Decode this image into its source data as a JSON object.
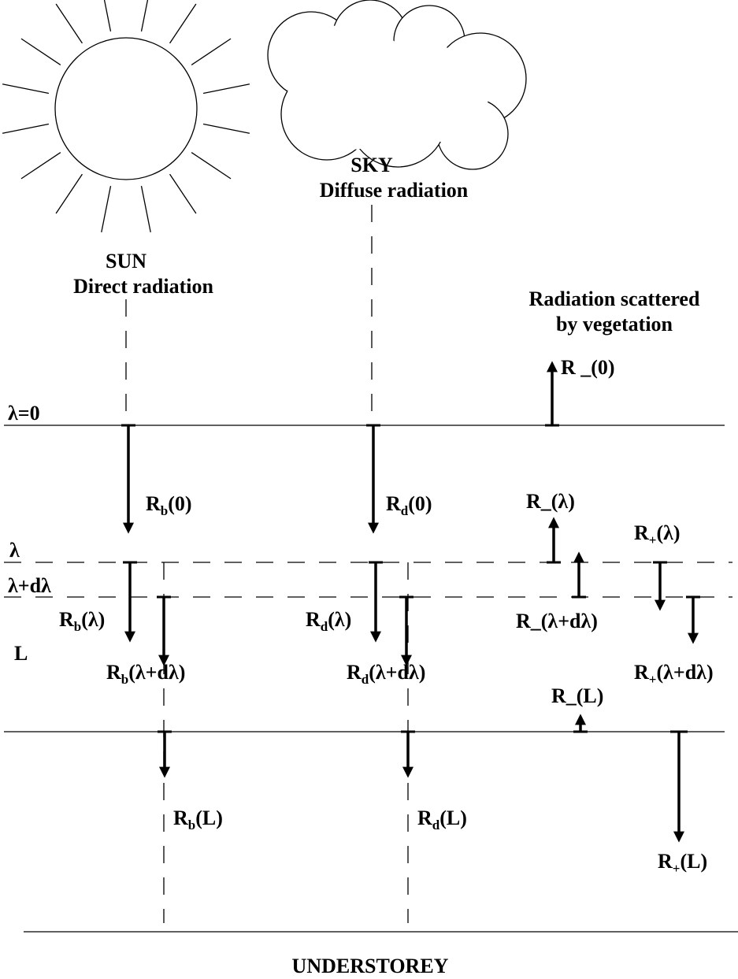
{
  "sun": {
    "title": "SUN",
    "subtitle": "Direct radiation"
  },
  "sky": {
    "title": "SKY",
    "subtitle": "Diffuse radiation"
  },
  "scattered": {
    "line1": "Radiation scattered",
    "line2": "by vegetation"
  },
  "levels": {
    "top": "λ=0",
    "lambda": "λ",
    "lambda_dl": "λ+dλ",
    "bottom": "L"
  },
  "labels": {
    "rb0": {
      "base": "R",
      "sub": "b",
      "arg": "(0)"
    },
    "rd0": {
      "base": "R",
      "sub": "d",
      "arg": "(0)"
    },
    "rm0": {
      "text": "R _(0)"
    },
    "rbl": {
      "base": "R",
      "sub": "b",
      "arg": "(λ)"
    },
    "rbldl": {
      "base": "R",
      "sub": "b",
      "arg": "(λ+dλ)"
    },
    "rdl": {
      "base": "R",
      "sub": "d",
      "arg": "(λ)"
    },
    "rdldl": {
      "base": "R",
      "sub": "d",
      "arg": "(λ+dλ)"
    },
    "rml": {
      "text": "R_(λ)"
    },
    "rmldl": {
      "text": "R_(λ+dλ)"
    },
    "rpl": {
      "base": "R",
      "sub": "+",
      "arg": "(λ)"
    },
    "rpldl": {
      "base": "R",
      "sub": "+",
      "arg": "(λ+dλ)"
    },
    "rmL": {
      "text": "R_(L)"
    },
    "rbL": {
      "base": "R",
      "sub": "b",
      "arg": "(L)"
    },
    "rdL": {
      "base": "R",
      "sub": "d",
      "arg": "(L)"
    },
    "rpL": {
      "base": "R",
      "sub": "+",
      "arg": "(L)"
    }
  },
  "footer": "UNDERSTOREY"
}
